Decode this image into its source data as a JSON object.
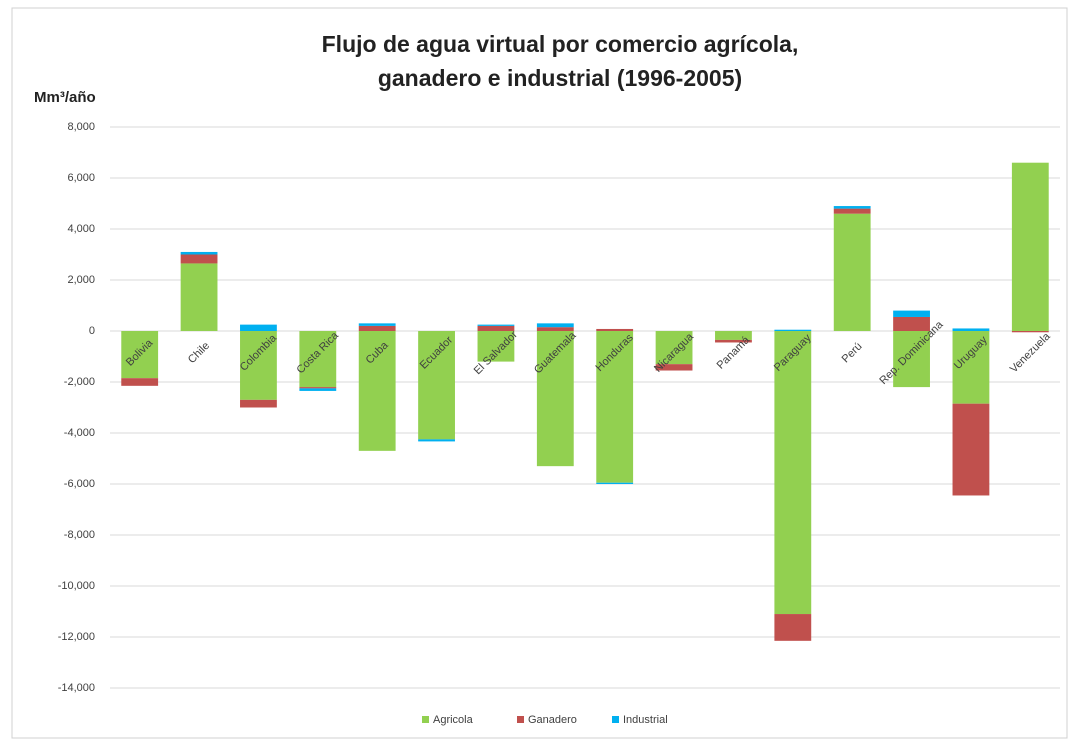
{
  "chart_data": {
    "type": "stacked_bar",
    "title": [
      "Flujo de agua virtual por comercio agrícola,",
      "ganadero e industrial  (1996-2005)"
    ],
    "y_label": "Mm³/año",
    "categories": [
      "Bolivia",
      "Chile",
      "Colombia",
      "Costa Rica",
      "Cuba",
      "Ecuador",
      "El Salvador",
      "Guatemala",
      "Honduras",
      "Nicaragua",
      "Panamá",
      "Paraguay",
      "Perú",
      "Rep. Dominicana",
      "Uruguay",
      "Venezuela"
    ],
    "series": [
      {
        "name": "Agricola",
        "color": "#92d050",
        "values": [
          -1850,
          2650,
          -2700,
          -2200,
          -4700,
          -4250,
          -1200,
          -5300,
          -5950,
          -1300,
          -350,
          -11100,
          4600,
          -2200,
          -2850,
          6600
        ]
      },
      {
        "name": "Ganadero",
        "color": "#c0504d",
        "values": [
          -300,
          350,
          -300,
          -50,
          200,
          0,
          200,
          150,
          80,
          -250,
          -100,
          -1050,
          200,
          550,
          -3600,
          -50
        ]
      },
      {
        "name": "Industrial",
        "color": "#00b0f0",
        "values": [
          0,
          100,
          250,
          -100,
          100,
          -80,
          50,
          150,
          -50,
          0,
          0,
          50,
          100,
          250,
          100,
          0
        ]
      }
    ],
    "ylim": [
      -14000,
      8000
    ],
    "yticks": [
      {
        "value": 8000,
        "label": "8,000"
      },
      {
        "value": 6000,
        "label": "6,000"
      },
      {
        "value": 4000,
        "label": "4,000"
      },
      {
        "value": 2000,
        "label": "2,000"
      },
      0,
      {
        "value": -2000,
        "label": "-2,000"
      },
      {
        "value": -4000,
        "label": "-4,000"
      },
      {
        "value": -6000,
        "label": "-6,000"
      },
      {
        "value": -8000,
        "label": "-8,000"
      },
      {
        "value": -10000,
        "label": "-10,000"
      },
      {
        "value": -12000,
        "label": "-12,000"
      },
      {
        "value": -14000,
        "label": "-14,000"
      }
    ],
    "grid": true,
    "legend": "bottom"
  }
}
